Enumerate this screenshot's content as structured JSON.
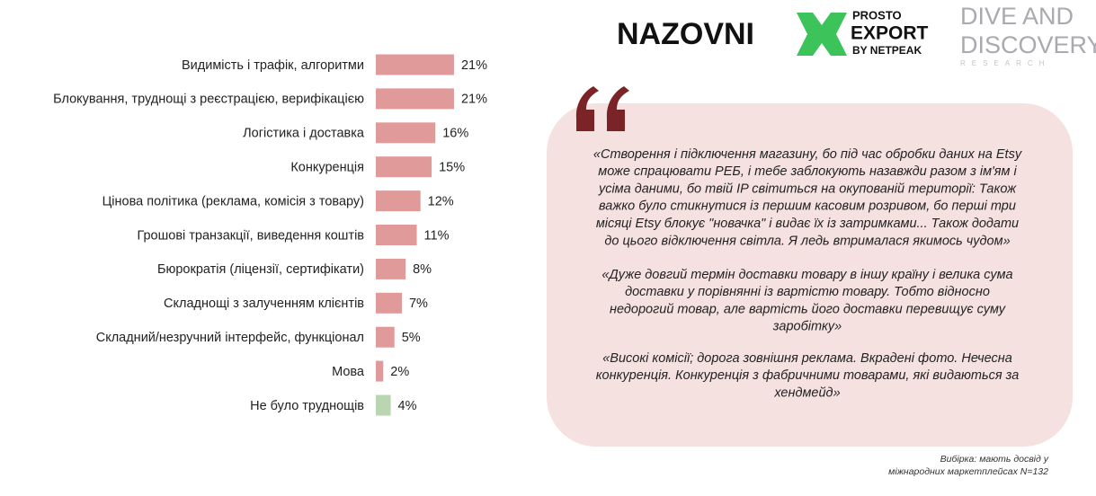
{
  "chart_data": {
    "type": "bar",
    "orientation": "horizontal",
    "categories": [
      "Видимість і трафік, алгоритми",
      "Блокування, труднощі з реєстрацією, верифікацією",
      "Логістика і доставка",
      "Конкуренція",
      "Цінова політика (реклама, комісія з товару)",
      "Грошові транзакції, виведення коштів",
      "Бюрократія (ліцензії, сертифікати)",
      "Складнощі з залученням клієнтів",
      "Складний/незручний інтерфейс, функціонал",
      "Мова",
      "Не було труднощів"
    ],
    "values": [
      21,
      21,
      16,
      15,
      12,
      11,
      8,
      7,
      5,
      2,
      4
    ],
    "value_labels": [
      "21%",
      "21%",
      "16%",
      "15%",
      "12%",
      "11%",
      "8%",
      "7%",
      "5%",
      "2%",
      "4%"
    ],
    "colors": [
      "#e09a9a",
      "#e09a9a",
      "#e09a9a",
      "#e09a9a",
      "#e09a9a",
      "#e09a9a",
      "#e09a9a",
      "#e09a9a",
      "#e09a9a",
      "#e09a9a",
      "#b9d6b0"
    ]
  },
  "quotes": [
    [
      "«Створення і підключення магазину, бо під час обробки даних на Etsy",
      "може спрацювати РЕБ, і тебе заблокують назавжди разом з ім'ям і",
      "усіма даними, бо твій IP світиться на окупованій території: Також",
      "важко було стикнутися із першим касовим розривом, бо перші три",
      "місяці Etsy блокує \"новачка\" і видає їх із затримками... Також додати",
      "до цього відключення світла. Я ледь втрималася якимось чудом»"
    ],
    [
      "«Дуже довгий термін доставки товару в іншу країну і велика сума",
      "доставки у порівнянні із вартістю товару. Тобто відносно",
      "недорогий товар, але вартість його доставки перевищує суму",
      "заробітку»"
    ],
    [
      "«Високі комісії; дорога зовнішня реклама. Вкрадені фото. Нечесна",
      "конкуренція. Конкуренція з фабричними товарами, які видаються за",
      "хендмейд»"
    ]
  ],
  "logos": {
    "nazovni": "NAZOVNI",
    "prosto": [
      "PROSTO",
      "EXPORT",
      "BY NETPEAK"
    ],
    "dive": [
      "DIVE AND",
      "DISCOVERY",
      "RESEARCH"
    ]
  },
  "footnote": [
    "Вибірка: мають досвід у",
    "міжнародних маркетплейсах N=132"
  ]
}
